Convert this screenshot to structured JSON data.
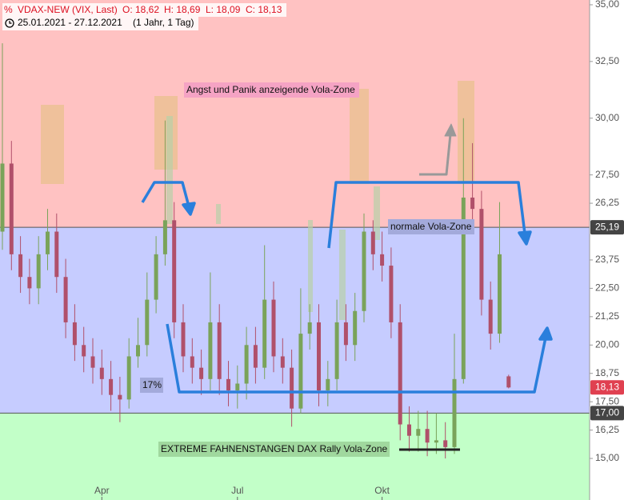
{
  "chart_data": {
    "type": "candlestick",
    "info": [
      "VDAX-NEW (VIX, Last)",
      "O: 18,62",
      "H: 18,69",
      "L: 18,09",
      "C: 18,13"
    ],
    "period": "25.01.2021 - 27.12.2021",
    "interval": "(1 Jahr, 1 Tag)",
    "categories": [
      null,
      null,
      null,
      null,
      null,
      null,
      null,
      null,
      null,
      null,
      null,
      "Apr",
      null,
      null,
      null,
      null,
      null,
      null,
      null,
      null,
      null,
      null,
      null,
      null,
      null,
      null,
      "Jul",
      null,
      null,
      null,
      null,
      null,
      null,
      null,
      null,
      null,
      null,
      null,
      null,
      null,
      null,
      null,
      "Okt",
      null,
      null,
      null,
      null,
      null,
      null,
      null,
      null,
      null,
      null,
      null,
      null,
      null,
      null
    ],
    "open": [
      25,
      28,
      24,
      23,
      22.5,
      24,
      25,
      23,
      21,
      20,
      19.5,
      19,
      18.5,
      17.8,
      17.6,
      19.5,
      20,
      22,
      24,
      25.5,
      21,
      19.5,
      19,
      18.5,
      21,
      18.5,
      18,
      18.3,
      20,
      19,
      22,
      19.5,
      19,
      17.2,
      20.5,
      21,
      18,
      18.5,
      21,
      20,
      21.5,
      25,
      24,
      23.5,
      21,
      16.5,
      16,
      16.3,
      15.7,
      15.8,
      15.5,
      18.5,
      26.5,
      26,
      22,
      20.5,
      18.62
    ],
    "high": [
      33.3,
      29,
      24.8,
      23.8,
      24.8,
      26,
      25.8,
      23.8,
      21.8,
      20.8,
      20.3,
      19.8,
      19.3,
      18.6,
      20.3,
      21.2,
      23.2,
      24.8,
      29.9,
      26.3,
      21.8,
      20.3,
      19.8,
      23.2,
      21.8,
      19.3,
      19.1,
      20.8,
      20.8,
      24.4,
      22.8,
      20.3,
      19.8,
      22.5,
      21.8,
      21.8,
      19.3,
      22,
      21.8,
      22.3,
      25.8,
      25.5,
      25,
      24.3,
      21.8,
      17.3,
      17.1,
      17.1,
      17,
      16.6,
      20.5,
      30,
      28.9,
      26.8,
      22.8,
      26.3,
      18.69
    ],
    "low": [
      24.2,
      23.3,
      22.3,
      21.8,
      21.8,
      23.3,
      22.3,
      20.3,
      19.3,
      18.8,
      18.3,
      17.8,
      17.1,
      16.6,
      17.2,
      19,
      19.5,
      21.4,
      23.5,
      20.3,
      18.8,
      18.3,
      17.8,
      18,
      17.8,
      17.3,
      17.2,
      17.6,
      18.3,
      18.5,
      18.8,
      18.3,
      16.4,
      17,
      19.8,
      17.3,
      17.3,
      18,
      19.3,
      19.3,
      21,
      23.3,
      22.8,
      20.3,
      15.8,
      15.3,
      15.3,
      15.1,
      15.2,
      15,
      15.2,
      18.3,
      25.3,
      21.3,
      19.8,
      20.1,
      18.09
    ],
    "close": [
      28,
      24,
      23,
      22.5,
      24,
      25,
      23,
      21,
      20,
      19.5,
      19,
      18.5,
      17.8,
      17.6,
      19.5,
      20,
      22,
      24,
      25.5,
      21,
      19.5,
      19,
      18.5,
      21,
      18.5,
      18,
      18.3,
      20,
      19,
      22,
      19.5,
      19,
      17.2,
      20.5,
      21,
      18,
      18.5,
      21,
      20,
      21.5,
      25,
      24,
      23.5,
      21,
      16.5,
      16,
      16.3,
      15.7,
      15.8,
      15.5,
      18.5,
      26.5,
      26,
      22,
      20.5,
      24,
      18.13
    ],
    "up_color": "#7aa35a",
    "down_color": "#b0506a",
    "ylim": [
      14.05,
      35.21
    ],
    "yticks": [
      {
        "value": 15,
        "label": "15,00"
      },
      {
        "value": 16.25,
        "label": "16,25"
      },
      {
        "value": 17.5,
        "label": "17,50"
      },
      {
        "value": 18.75,
        "label": "18,75"
      },
      {
        "value": 20,
        "label": "20,00"
      },
      {
        "value": 21.25,
        "label": "21,25"
      },
      {
        "value": 22.5,
        "label": "22,50"
      },
      {
        "value": 23.75,
        "label": "23,75"
      },
      {
        "value": 26.25,
        "label": "26,25"
      },
      {
        "value": 27.5,
        "label": "27,50"
      },
      {
        "value": 30,
        "label": "30,00"
      },
      {
        "value": 32.5,
        "label": "32,50"
      },
      {
        "value": 35,
        "label": "35,00"
      }
    ],
    "levels": [
      {
        "value": 25.19,
        "label": "25,19",
        "color": "#444444"
      },
      {
        "value": 18.13,
        "label": "18,13",
        "color": "#e04050"
      },
      {
        "value": 17,
        "label": "17,00",
        "color": "#444444"
      }
    ],
    "zone_colors": [
      "#ffc2c2",
      "#c6ccff",
      "#c2ffc8"
    ],
    "annotations": [
      "Angst und Panik anzeigende Vola-Zone",
      "normale Vola-Zone",
      "17%",
      "EXTREME FAHNENSTANGEN DAX Rally Vola-Zone"
    ]
  }
}
